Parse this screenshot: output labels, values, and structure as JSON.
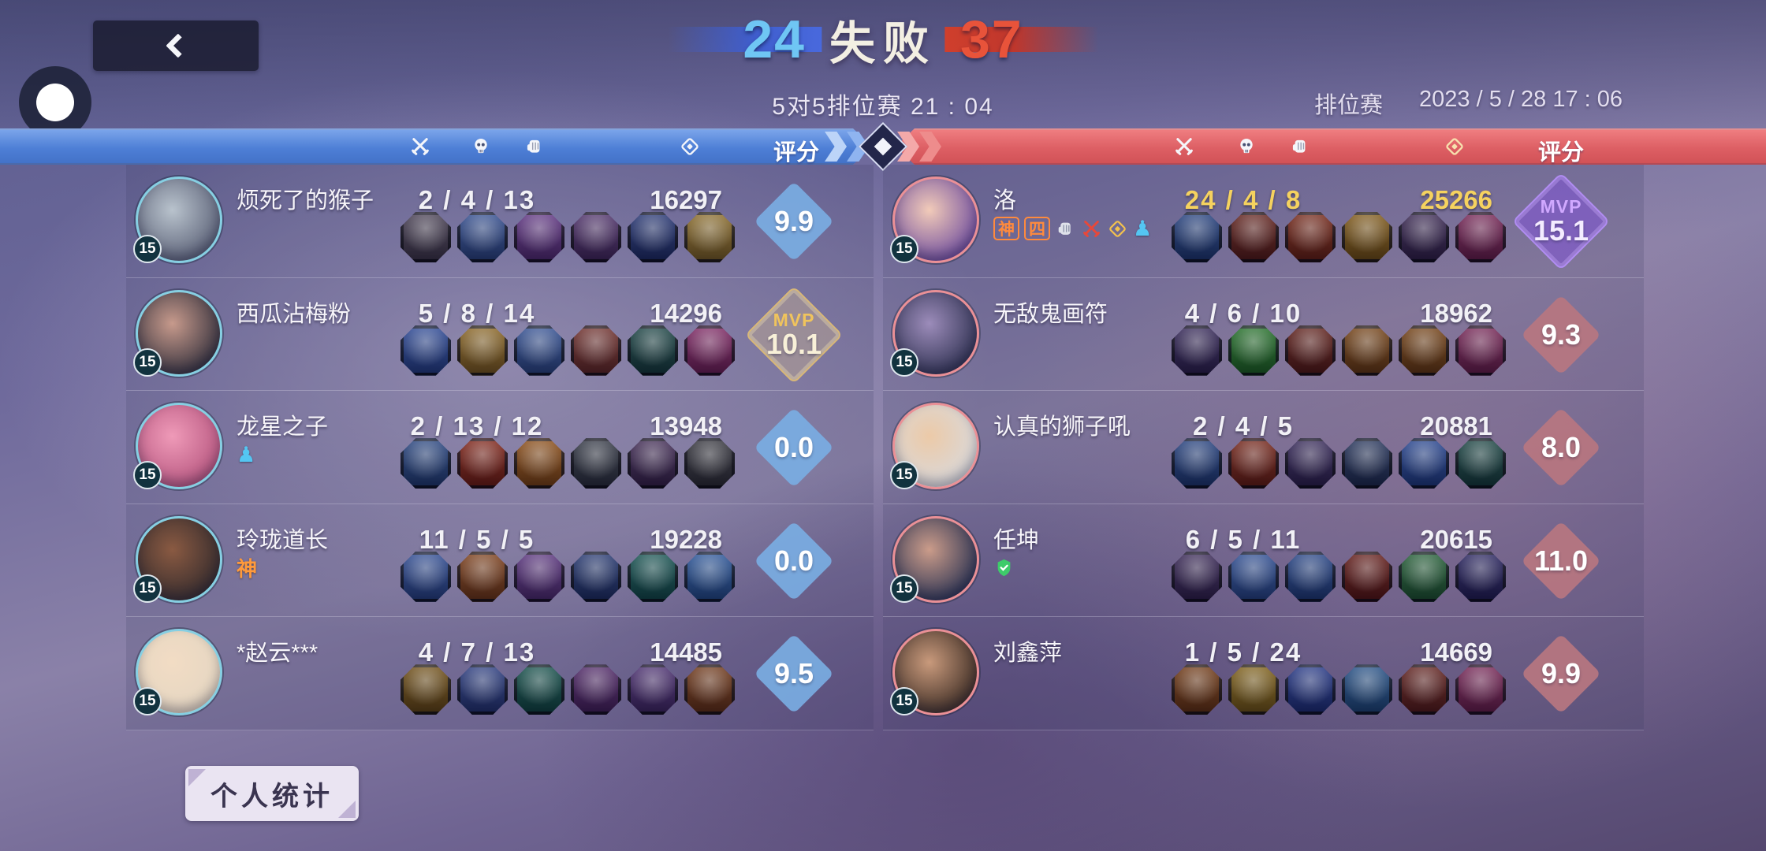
{
  "topbar": {
    "score_left": "24",
    "result_label": "失败",
    "score_right": "37",
    "subtitle": "5对5排位赛 21 : 04",
    "mode_label": "排位赛",
    "datetime": "2023 / 5 / 28 17 : 06"
  },
  "scoreboard_header": {
    "rating_label": "评分",
    "icons": [
      "kills-swords",
      "deaths-skull",
      "assists-fist",
      "gold-coin"
    ]
  },
  "colors": {
    "blue_team": "#4e7fd6",
    "red_team": "#dd5f64",
    "score_left": "#6fc6f4",
    "score_right": "#e8533a",
    "gold_highlight": "#f5d25f",
    "mvp_gold": "#d9b878",
    "mvp_purple": "#b18df2"
  },
  "teams": {
    "blue": {
      "players": [
        {
          "name": "烦死了的猴子",
          "level": "15",
          "kda": "2 / 4 / 13",
          "gold": "16297",
          "rating": "9.9",
          "badges": [],
          "items": [
            "#433a4e",
            "#2e4a8e",
            "#5c2f80",
            "#4a2b66",
            "#203070",
            "#8a6a26"
          ],
          "avatar_colors": [
            "#b9c3cd",
            "#5a6076"
          ]
        },
        {
          "name": "西瓜沾梅粉",
          "level": "15",
          "kda": "5 / 8 / 14",
          "gold": "14296",
          "rating": "10.1",
          "mvp_label": "MVP",
          "badges": [],
          "items": [
            "#274494",
            "#8a6420",
            "#2f4d92",
            "#6e2c28",
            "#164040",
            "#7c2260"
          ],
          "avatar_colors": [
            "#c79a8c",
            "#33303c"
          ]
        },
        {
          "name": "龙星之子",
          "level": "15",
          "kda": "2 / 13 / 12",
          "gold": "13948",
          "rating": "0.0",
          "badges": [
            {
              "kind": "glyph",
              "glyph": "♟",
              "color": "#54c6f2",
              "name": "rank-pawn-icon"
            }
          ],
          "items": [
            "#23417e",
            "#7e1f12",
            "#8a4a12",
            "#2e3340",
            "#3c2550",
            "#303038"
          ],
          "avatar_colors": [
            "#ef9ab8",
            "#b6567f"
          ]
        },
        {
          "name": "玲珑道长",
          "level": "15",
          "kda": "11 / 5 / 5",
          "gold": "19228",
          "rating": "0.0",
          "badges": [
            {
              "kind": "text",
              "label": "神",
              "color": "#ff9a3b",
              "name": "god-badge"
            }
          ],
          "items": [
            "#2a4892",
            "#7c3c16",
            "#572f7c",
            "#20336e",
            "#11504e",
            "#265298"
          ],
          "avatar_colors": [
            "#8a5a42",
            "#342b2d"
          ]
        },
        {
          "name": "*赵云***",
          "level": "15",
          "kda": "4 / 7 / 13",
          "gold": "14485",
          "rating": "9.5",
          "badges": [],
          "items": [
            "#6f4d12",
            "#26387e",
            "#0f4c46",
            "#4c2264",
            "#472a6e",
            "#6e3414"
          ],
          "avatar_colors": [
            "#f2dcc4",
            "#e4d6c2"
          ]
        }
      ]
    },
    "red": {
      "players": [
        {
          "name": "洛",
          "level": "15",
          "kda": "24 / 4 / 8",
          "gold": "25266",
          "rating": "15.1",
          "mvp_label": "MVP",
          "highlight": true,
          "badges": [
            {
              "kind": "text",
              "label": "神",
              "color": "#ff8a3d",
              "boxed": true,
              "name": "god-badge"
            },
            {
              "kind": "text",
              "label": "四",
              "color": "#ff8a3d",
              "boxed": true,
              "name": "quadra-badge"
            },
            {
              "kind": "icon",
              "icon": "fist",
              "color": "#dfe2ea",
              "name": "assists-fist-icon"
            },
            {
              "kind": "icon",
              "icon": "swords",
              "color": "#e8483a",
              "name": "kills-swords-icon"
            },
            {
              "kind": "icon",
              "icon": "coin",
              "color": "#f2c14e",
              "name": "gold-coin-icon"
            },
            {
              "kind": "glyph",
              "glyph": "♟",
              "color": "#54c6f2",
              "name": "rank-pawn-icon"
            }
          ],
          "items": [
            "#1f3c7c",
            "#5e1c16",
            "#722212",
            "#7e5612",
            "#35224e",
            "#742052"
          ],
          "avatar_colors": [
            "#f2cbb9",
            "#6f4d9e"
          ]
        },
        {
          "name": "无敌鬼画符",
          "level": "15",
          "kda": "4 / 6 / 10",
          "gold": "18962",
          "rating": "9.3",
          "badges": [],
          "items": [
            "#302254",
            "#1f6e24",
            "#5c1a14",
            "#723e10",
            "#723e10",
            "#742052"
          ],
          "avatar_colors": [
            "#9c8cba",
            "#303252"
          ]
        },
        {
          "name": "认真的狮子吼",
          "level": "15",
          "kda": "2 / 4 / 5",
          "gold": "20881",
          "rating": "8.0",
          "badges": [],
          "items": [
            "#1f3c7c",
            "#721f12",
            "#302254",
            "#1f2e56",
            "#21408e",
            "#15403e"
          ],
          "avatar_colors": [
            "#eccaa8",
            "#d9d9dc"
          ]
        },
        {
          "name": "任坤",
          "level": "15",
          "kda": "6 / 5 / 11",
          "gold": "20615",
          "rating": "11.0",
          "badges": [
            {
              "kind": "icon",
              "icon": "shield",
              "color": "#3ecb6a",
              "name": "protect-shield-icon"
            }
          ],
          "items": [
            "#342252",
            "#294a92",
            "#214084",
            "#601612",
            "#1f5c32",
            "#241f5c"
          ],
          "avatar_colors": [
            "#cb9c8a",
            "#2a3252"
          ]
        },
        {
          "name": "刘鑫萍",
          "level": "15",
          "kda": "1 / 5 / 24",
          "gold": "14669",
          "rating": "9.9",
          "badges": [],
          "items": [
            "#6f3610",
            "#7e5e14",
            "#1f3284",
            "#1f4c84",
            "#5e1c18",
            "#742052"
          ],
          "avatar_colors": [
            "#c99a7c",
            "#3c2c24"
          ]
        }
      ]
    }
  },
  "footer": {
    "personal_stats_label": "个人统计"
  }
}
